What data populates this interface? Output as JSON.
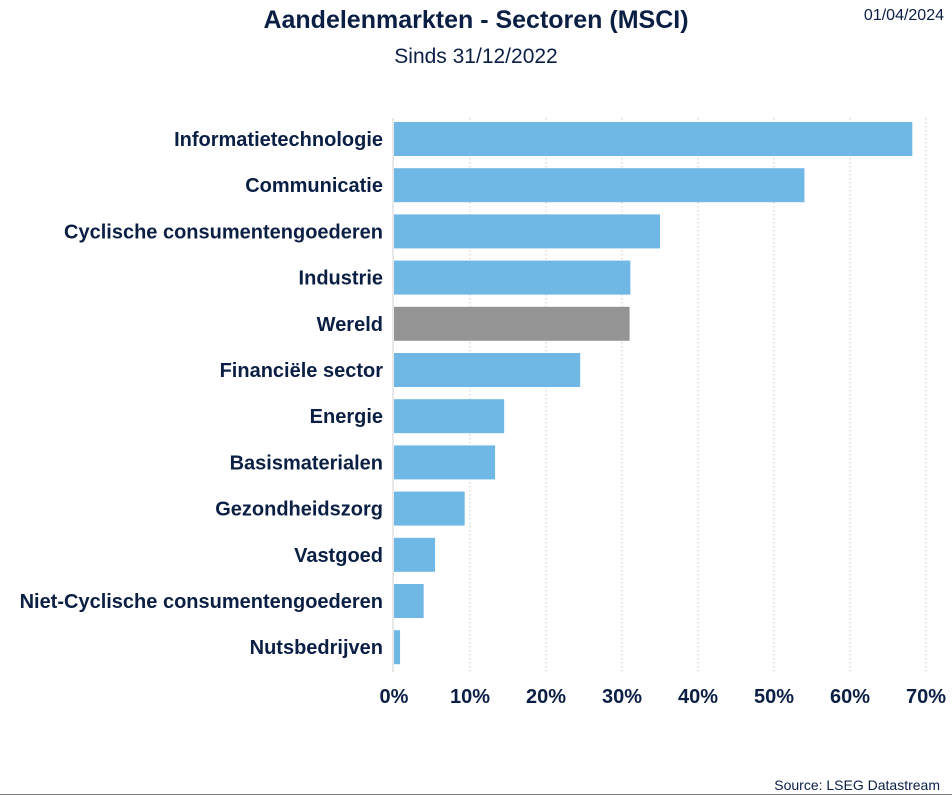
{
  "header": {
    "title": "Aandelenmarkten - Sectoren (MSCI)",
    "subtitle": "Sinds 31/12/2022",
    "date": "01/04/2024"
  },
  "footer": {
    "source": "Source: LSEG Datastream"
  },
  "colors": {
    "bar": "#6fb8e6",
    "highlight_bar": "#949494",
    "gridline": "#c8c8c8",
    "text": "#0b1f45"
  },
  "chart_data": {
    "type": "bar",
    "orientation": "horizontal",
    "title": "Aandelenmarkten - Sectoren (MSCI)",
    "subtitle": "Sinds 31/12/2022",
    "categories": [
      "Informatietechnologie",
      "Communicatie",
      "Cyclische consumentengoederen",
      "Industrie",
      "Wereld",
      "Financiële sector",
      "Energie",
      "Basismaterialen",
      "Gezondheidszorg",
      "Vastgoed",
      "Niet-Cyclische consumentengoederen",
      "Nutsbedrijven"
    ],
    "values": [
      68.2,
      54.0,
      35.0,
      31.1,
      31.0,
      24.5,
      14.5,
      13.3,
      9.3,
      5.4,
      3.9,
      0.8
    ],
    "unit": "%",
    "highlight": "Wereld",
    "xlim": [
      0,
      70
    ],
    "xticks": [
      "0%",
      "10%",
      "20%",
      "30%",
      "40%",
      "50%",
      "60%",
      "70%"
    ],
    "grid": "vertical dotted",
    "legend": "none"
  }
}
